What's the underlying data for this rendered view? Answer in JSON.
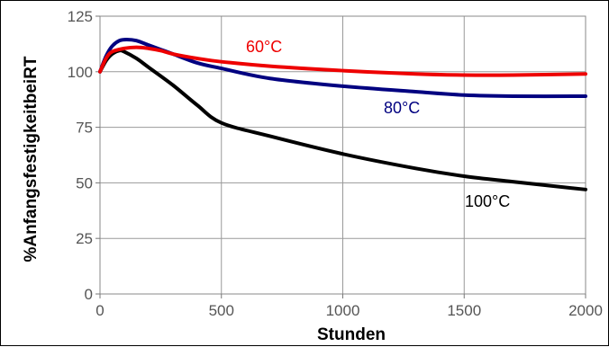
{
  "chart_data": {
    "type": "line",
    "title": "",
    "xlabel": "Stunden",
    "ylabel": "%AnfangsfestigkeitbeiRT",
    "xlim": [
      0,
      2000
    ],
    "ylim": [
      0,
      125
    ],
    "xticks": [
      0,
      500,
      1000,
      1500,
      2000
    ],
    "xtick_labels": [
      "0",
      "500",
      "1000",
      "1500",
      "2000"
    ],
    "yticks": [
      0,
      25,
      50,
      75,
      100,
      125
    ],
    "ytick_labels": [
      "0",
      "25",
      "50",
      "75",
      "100",
      "125"
    ],
    "grid": true,
    "legend": "none (series labelled directly on the plot)",
    "series": [
      {
        "name": "60°C",
        "color": "#ee0000",
        "x": [
          0,
          25,
          50,
          100,
          150,
          200,
          250,
          300,
          400,
          500,
          700,
          1000,
          1300,
          1500,
          1700,
          2000
        ],
        "y": [
          100,
          106,
          109,
          110.5,
          111,
          110.5,
          109.5,
          108,
          106,
          104.5,
          102.5,
          100.5,
          99,
          98.5,
          98.5,
          99
        ]
      },
      {
        "name": "80°C",
        "color": "#000080",
        "x": [
          0,
          25,
          50,
          80,
          110,
          150,
          200,
          250,
          300,
          400,
          500,
          700,
          1000,
          1300,
          1500,
          1700,
          2000
        ],
        "y": [
          100,
          107,
          111.5,
          114,
          114.5,
          114,
          112,
          110,
          108,
          104,
          101.5,
          97,
          93.5,
          91,
          89.5,
          89,
          89
        ]
      },
      {
        "name": "100°C",
        "color": "#000000",
        "x": [
          0,
          25,
          50,
          80,
          100,
          150,
          200,
          300,
          400,
          500,
          700,
          1000,
          1300,
          1500,
          1700,
          2000
        ],
        "y": [
          100,
          105,
          108,
          109.5,
          109,
          106,
          102,
          94,
          85,
          77,
          71,
          63,
          56.5,
          53,
          50.5,
          47
        ]
      }
    ],
    "annotations": [
      {
        "text": "60°C",
        "color": "#ee0000"
      },
      {
        "text": "80°C",
        "color": "#000080"
      },
      {
        "text": "100°C",
        "color": "#000000"
      }
    ]
  }
}
